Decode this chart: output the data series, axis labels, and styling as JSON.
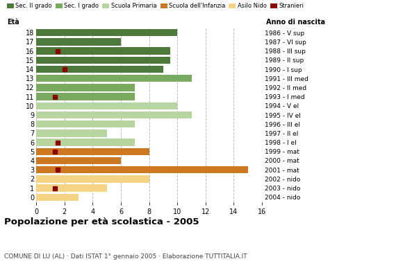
{
  "ages": [
    18,
    17,
    16,
    15,
    14,
    13,
    12,
    11,
    10,
    9,
    8,
    7,
    6,
    5,
    4,
    3,
    2,
    1,
    0
  ],
  "years": [
    "1986 - V sup",
    "1987 - VI sup",
    "1988 - III sup",
    "1989 - II sup",
    "1990 - I sup",
    "1991 - III med",
    "1992 - II med",
    "1993 - I med",
    "1994 - V el",
    "1995 - IV el",
    "1996 - III el",
    "1997 - II el",
    "1998 - I el",
    "1999 - mat",
    "2000 - mat",
    "2001 - mat",
    "2002 - nido",
    "2003 - nido",
    "2004 - nido"
  ],
  "bar_values": [
    10,
    6,
    9.5,
    9.5,
    9,
    11,
    7,
    7,
    10,
    11,
    7,
    5,
    7,
    8,
    6,
    15,
    8,
    5,
    3
  ],
  "bar_colors": [
    "#4d7a3a",
    "#4d7a3a",
    "#4d7a3a",
    "#4d7a3a",
    "#4d7a3a",
    "#7aaa5f",
    "#7aaa5f",
    "#7aaa5f",
    "#b8d4a0",
    "#b8d4a0",
    "#b8d4a0",
    "#b8d4a0",
    "#b8d4a0",
    "#cc7722",
    "#cc7722",
    "#cc7722",
    "#f5d585",
    "#f5d585",
    "#f5d585"
  ],
  "stranieri_ages": [
    16,
    14,
    11,
    6,
    5,
    3,
    1
  ],
  "stranieri_x": [
    1.5,
    2.0,
    1.3,
    1.5,
    1.3,
    1.5,
    1.3
  ],
  "stranieri_color": "#8b0000",
  "legend_labels": [
    "Sec. II grado",
    "Sec. I grado",
    "Scuola Primaria",
    "Scuola dell'Infanzia",
    "Asilo Nido",
    "Stranieri"
  ],
  "legend_colors": [
    "#4d7a3a",
    "#7aaa5f",
    "#b8d4a0",
    "#cc7722",
    "#f5d585",
    "#8b0000"
  ],
  "title": "Popolazione per età scolastica - 2005",
  "subtitle": "COMUNE DI LU (AL) · Dati ISTAT 1° gennaio 2005 · Elaborazione TUTTITALIA.IT",
  "label_left": "Età",
  "label_right": "Anno di nascita",
  "xlim": [
    0,
    16
  ],
  "xticks": [
    0,
    2,
    4,
    6,
    8,
    10,
    12,
    14,
    16
  ],
  "background_color": "#ffffff",
  "bar_height": 0.78,
  "grid_color": "#bbbbbb"
}
